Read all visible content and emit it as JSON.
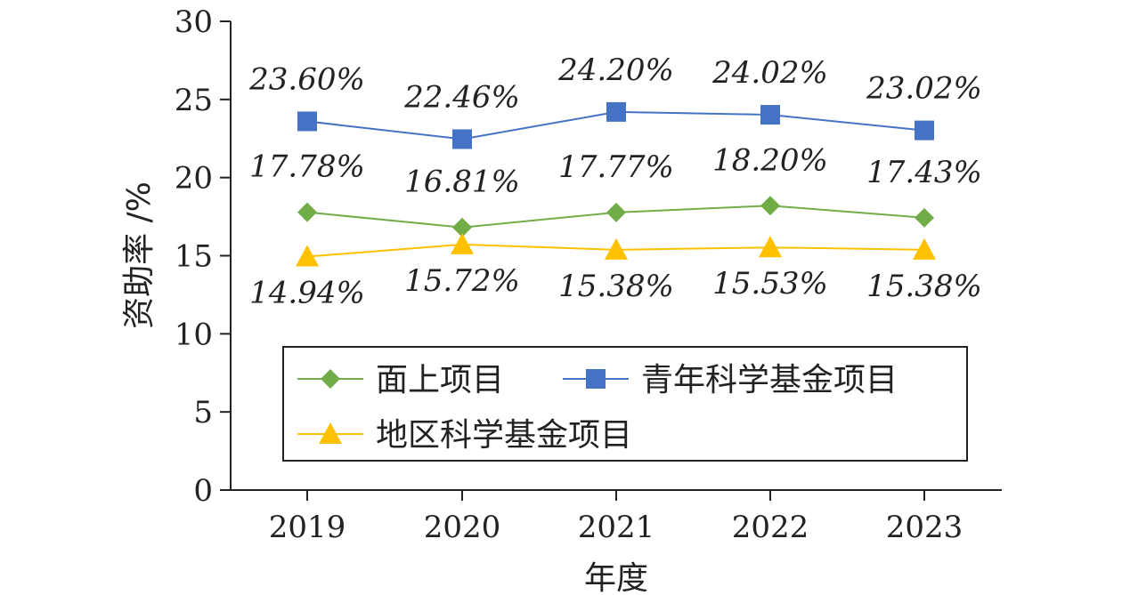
{
  "chart_data": {
    "type": "line",
    "categories": [
      "2019",
      "2020",
      "2021",
      "2022",
      "2023"
    ],
    "series": [
      {
        "name": "面上项目",
        "values": [
          17.78,
          16.81,
          17.77,
          18.2,
          17.43
        ],
        "labels": [
          "17.78%",
          "16.81%",
          "17.77%",
          "18.20%",
          "17.43%"
        ],
        "color": "#70AD47",
        "marker": "diamond"
      },
      {
        "name": "青年科学基金项目",
        "values": [
          23.6,
          22.46,
          24.2,
          24.02,
          23.02
        ],
        "labels": [
          "23.60%",
          "22.46%",
          "24.20%",
          "24.02%",
          "23.02%"
        ],
        "color": "#4472C4",
        "marker": "square"
      },
      {
        "name": "地区科学基金项目",
        "values": [
          14.94,
          15.72,
          15.38,
          15.53,
          15.38
        ],
        "labels": [
          "14.94%",
          "15.72%",
          "15.38%",
          "15.53%",
          "15.38%"
        ],
        "color": "#FFC000",
        "marker": "triangle"
      }
    ],
    "title": "",
    "xlabel": "年度",
    "ylabel": "资助率 /%",
    "ylim": [
      0,
      30
    ],
    "yticks": [
      "0",
      "5",
      "10",
      "15",
      "20",
      "25",
      "30"
    ],
    "grid": false,
    "legend_position": "lower-center"
  }
}
